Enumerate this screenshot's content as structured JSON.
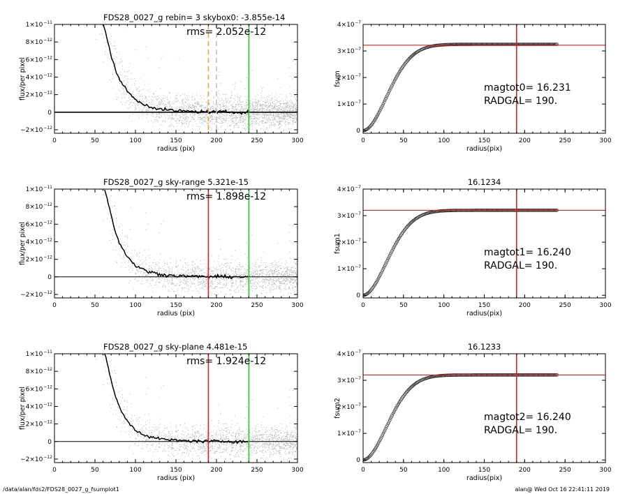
{
  "footer": {
    "path": "/data/alan/fds2/FDS28_0027_g_fsumplot1",
    "stamp": "alan@  Wed Oct 16 22:41:11 2019"
  },
  "chart_data": [
    {
      "type": "scatter",
      "title": "FDS28_0027_g rebin= 3    skybox0: -3.855e-14",
      "annotation": "rms= 2.052e-12",
      "xlabel": "radius (pix)",
      "ylabel": "flux/per pixel",
      "xlim": [
        0,
        300
      ],
      "ylim": [
        -2.4e-12,
        1e-11
      ],
      "xticks": [
        0,
        50,
        100,
        150,
        200,
        250,
        300
      ],
      "yticks": [
        "1×10",
        "8×10",
        "6×10",
        "4×10",
        "2×10",
        "0",
        "−2×10"
      ],
      "ytick_values": [
        1e-11,
        8e-12,
        6e-12,
        4e-12,
        2e-12,
        0,
        -2e-12
      ],
      "ytick_exp": "−12",
      "ytick_exp_top": "−11",
      "profile": {
        "x": [
          60,
          64,
          68,
          72,
          76,
          80,
          85,
          90,
          95,
          100,
          110,
          120,
          130,
          140,
          150,
          165,
          180,
          200,
          220,
          240
        ],
        "y": [
          1e-11,
          8.8e-12,
          7.2e-12,
          5.8e-12,
          4.6e-12,
          3.9e-12,
          3e-12,
          2.4e-12,
          1.9e-12,
          1.4e-12,
          9e-13,
          6e-13,
          3.5e-13,
          2.5e-13,
          1.5e-13,
          1e-13,
          5e-14,
          3e-14,
          1e-14,
          0
        ]
      },
      "vlines": [
        {
          "x": 190,
          "color": "#f0a040",
          "style": "dashed"
        },
        {
          "x": 200,
          "color": "#c0c0c0",
          "style": "dashed"
        },
        {
          "x": 240,
          "color": "#22cc22",
          "style": "solid"
        }
      ],
      "baseline_thick": true
    },
    {
      "type": "line",
      "title": "",
      "xlabel": "radius(pix)",
      "ylabel": "fsum",
      "xlim": [
        0,
        300
      ],
      "ylim": [
        -1e-08,
        4e-07
      ],
      "xticks": [
        0,
        50,
        100,
        150,
        200,
        250,
        300
      ],
      "yticks": [
        "4×10",
        "3×10",
        "2×10",
        "1×10",
        "0"
      ],
      "ytick_values": [
        4e-07,
        3e-07,
        2e-07,
        1e-07,
        0
      ],
      "ytick_exp": "−7",
      "curve_max": 3.25e-07,
      "curve_end": 240,
      "hline": 3.22e-07,
      "vline": 190,
      "annotations": [
        "magtot0=  16.231",
        "RADGAL=    190."
      ]
    },
    {
      "type": "scatter",
      "title": "FDS28_0027_g sky-range  5.321e-15",
      "annotation": "rms= 1.898e-12",
      "xlabel": "radius (pix)",
      "ylabel": "flux/per pixel",
      "xlim": [
        0,
        300
      ],
      "ylim": [
        -2.4e-12,
        1e-11
      ],
      "xticks": [
        0,
        50,
        100,
        150,
        200,
        250,
        300
      ],
      "yticks": [
        "1×10",
        "8×10",
        "6×10",
        "4×10",
        "2×10",
        "0",
        "−2×10"
      ],
      "ytick_values": [
        1e-11,
        8e-12,
        6e-12,
        4e-12,
        2e-12,
        0,
        -2e-12
      ],
      "ytick_exp": "−12",
      "ytick_exp_top": "−11",
      "profile": {
        "x": [
          62,
          66,
          70,
          74,
          78,
          82,
          86,
          90,
          95,
          100,
          110,
          120,
          130,
          140,
          150,
          165,
          180,
          200,
          220,
          240
        ],
        "y": [
          1e-11,
          8.6e-12,
          7e-12,
          5.6e-12,
          4.3e-12,
          3.6e-12,
          2.9e-12,
          2.3e-12,
          1.8e-12,
          1.3e-12,
          8e-13,
          5e-13,
          3e-13,
          2e-13,
          1.2e-13,
          8e-14,
          4e-14,
          2e-14,
          1e-14,
          0
        ]
      },
      "vlines": [
        {
          "x": 190,
          "color": "#dd2222",
          "style": "solid"
        },
        {
          "x": 240,
          "color": "#22cc22",
          "style": "solid"
        }
      ],
      "baseline_thick": false
    },
    {
      "type": "line",
      "title": "16.1234",
      "xlabel": "radius(pix)",
      "ylabel": "fsum1",
      "xlim": [
        0,
        300
      ],
      "ylim": [
        -1e-08,
        4e-07
      ],
      "xticks": [
        0,
        50,
        100,
        150,
        200,
        250,
        300
      ],
      "yticks": [
        "4×10",
        "3×10",
        "2×10",
        "1×10",
        "0"
      ],
      "ytick_values": [
        4e-07,
        3e-07,
        2e-07,
        1e-07,
        0
      ],
      "ytick_exp": "−7",
      "curve_max": 3.2e-07,
      "curve_end": 240,
      "hline": 3.2e-07,
      "vline": 190,
      "annotations": [
        "magtot1=  16.240",
        "RADGAL=    190."
      ]
    },
    {
      "type": "scatter",
      "title": "FDS28_0027_g sky-plane  4.481e-15",
      "annotation": "rms= 1.924e-12",
      "xlabel": "radius (pix)",
      "ylabel": "flux/per pixel",
      "xlim": [
        0,
        300
      ],
      "ylim": [
        -2.4e-12,
        1e-11
      ],
      "xticks": [
        0,
        50,
        100,
        150,
        200,
        250,
        300
      ],
      "yticks": [
        "1×10",
        "8×10",
        "6×10",
        "4×10",
        "2×10",
        "0",
        "−2×10"
      ],
      "ytick_values": [
        1e-11,
        8e-12,
        6e-12,
        4e-12,
        2e-12,
        0,
        -2e-12
      ],
      "ytick_exp": "−12",
      "ytick_exp_top": "−11",
      "profile": {
        "x": [
          62,
          66,
          70,
          74,
          78,
          82,
          86,
          90,
          95,
          100,
          110,
          120,
          130,
          140,
          150,
          165,
          180,
          200,
          220,
          240
        ],
        "y": [
          1e-11,
          8.6e-12,
          7e-12,
          5.6e-12,
          4.3e-12,
          3.6e-12,
          2.9e-12,
          2.3e-12,
          1.8e-12,
          1.3e-12,
          8e-13,
          5e-13,
          3e-13,
          2e-13,
          1.2e-13,
          8e-14,
          4e-14,
          2e-14,
          1e-14,
          0
        ]
      },
      "vlines": [
        {
          "x": 190,
          "color": "#dd2222",
          "style": "solid"
        },
        {
          "x": 240,
          "color": "#22cc22",
          "style": "solid"
        }
      ],
      "baseline_thick": false
    },
    {
      "type": "line",
      "title": "16.1233",
      "xlabel": "radius(pix)",
      "ylabel": "fsum2",
      "xlim": [
        0,
        300
      ],
      "ylim": [
        -1e-08,
        4e-07
      ],
      "xticks": [
        0,
        50,
        100,
        150,
        200,
        250,
        300
      ],
      "yticks": [
        "4×10",
        "3×10",
        "2×10",
        "1×10",
        "0"
      ],
      "ytick_values": [
        4e-07,
        3e-07,
        2e-07,
        1e-07,
        0
      ],
      "ytick_exp": "−7",
      "curve_max": 3.2e-07,
      "curve_end": 240,
      "hline": 3.2e-07,
      "vline": 190,
      "annotations": [
        "magtot2=  16.240",
        "RADGAL=    190."
      ]
    }
  ]
}
